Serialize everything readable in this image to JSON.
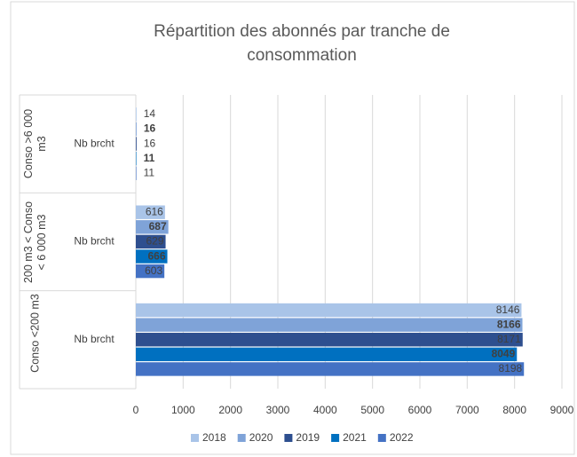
{
  "chart_data": {
    "type": "bar",
    "orientation": "horizontal",
    "title": "Répartition des abonnés par tranche de consommation",
    "categories": [
      "Conso >6 000 m3",
      "200 m3 < Conso < 6 000 m3",
      "Conso <200 m3"
    ],
    "subcategories": [
      "Nb brcht",
      "Nb brcht",
      "Nb brcht"
    ],
    "series": [
      {
        "name": "2018",
        "color": "#a9c4e8",
        "label_bold": false,
        "values": [
          14,
          616,
          8146
        ]
      },
      {
        "name": "2020",
        "color": "#7fa3d8",
        "label_bold": true,
        "values": [
          16,
          687,
          8166
        ]
      },
      {
        "name": "2019",
        "color": "#2e4f8f",
        "label_bold": false,
        "values": [
          16,
          629,
          8171
        ]
      },
      {
        "name": "2021",
        "color": "#0070c0",
        "label_bold": true,
        "values": [
          11,
          666,
          8049
        ]
      },
      {
        "name": "2022",
        "color": "#4472c4",
        "label_bold": false,
        "values": [
          11,
          603,
          8198
        ]
      }
    ],
    "xlim": [
      0,
      9000
    ],
    "xticks": [
      0,
      1000,
      2000,
      3000,
      4000,
      5000,
      6000,
      7000,
      8000,
      9000
    ],
    "grid": true,
    "legend": "bottom"
  }
}
